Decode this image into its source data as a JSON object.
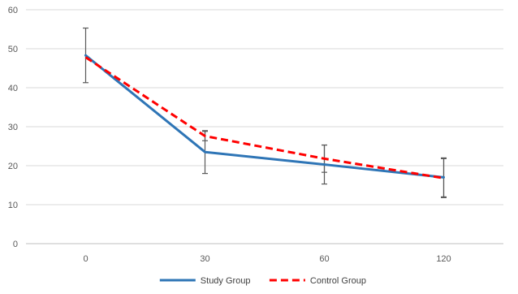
{
  "chart_data": {
    "type": "line",
    "categories": [
      "0",
      "30",
      "60",
      "120"
    ],
    "ylim": [
      0,
      60
    ],
    "yticks": [
      0,
      10,
      20,
      30,
      40,
      50,
      60
    ],
    "grid": true,
    "legend_position": "bottom",
    "series": [
      {
        "name": "Study Group",
        "color": "#2e75b6",
        "dash": "solid",
        "values": [
          48.3,
          23.5,
          20.3,
          17.0
        ],
        "error": [
          7.0,
          5.5,
          5.0,
          5.0
        ]
      },
      {
        "name": "Control Group",
        "color": "#ff0000",
        "dash": "dashed",
        "values": [
          47.8,
          27.6,
          21.8,
          16.8
        ],
        "error": [
          null,
          1.2,
          3.5,
          5.0
        ]
      }
    ]
  }
}
